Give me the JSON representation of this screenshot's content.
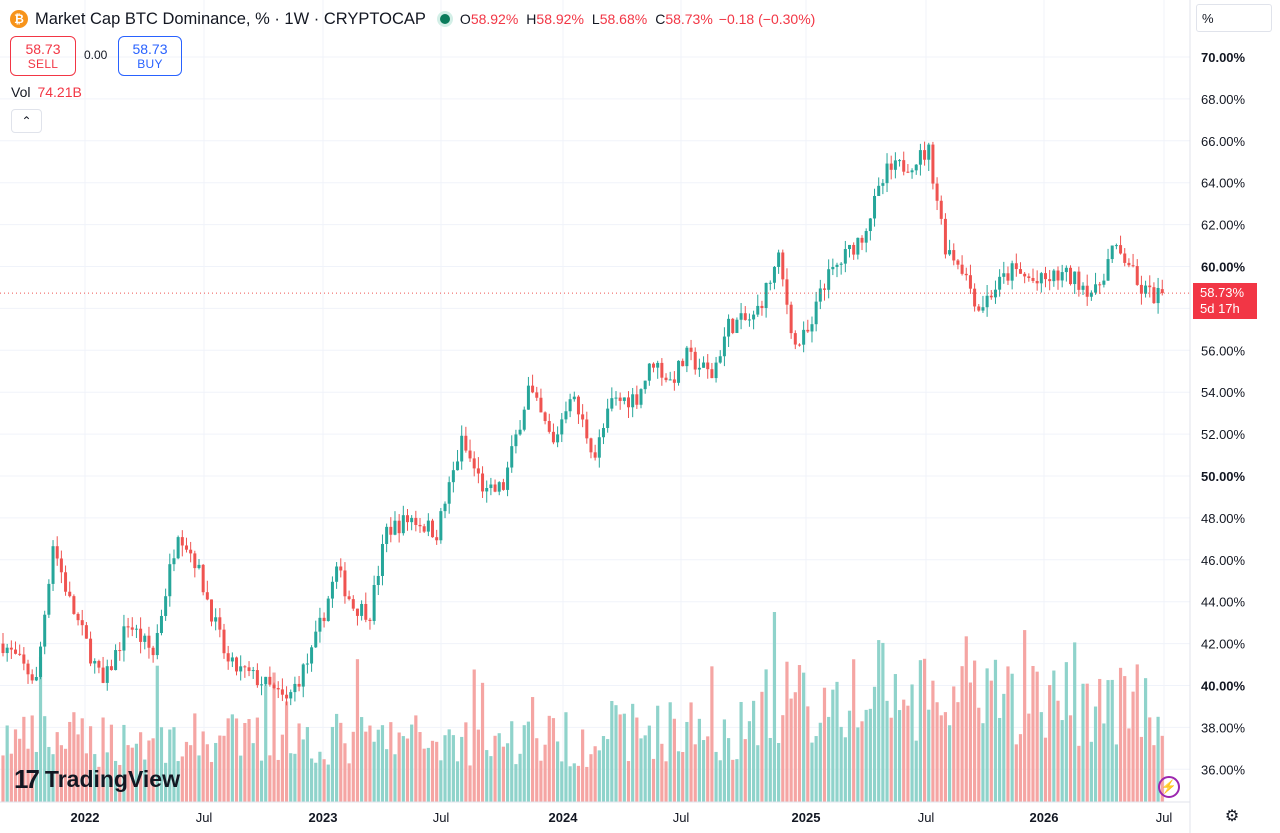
{
  "header": {
    "title": "Market Cap BTC Dominance, % · 1W · CRYPTOCAP",
    "symbol_badge": "₿",
    "ohlc": {
      "o_label": "O",
      "o_value": "58.92%",
      "h_label": "H",
      "h_value": "58.92%",
      "l_label": "L",
      "l_value": "58.68%",
      "c_label": "C",
      "c_value": "58.73%",
      "change": "−0.18 (−0.30%)"
    }
  },
  "trade": {
    "sell_price": "58.73",
    "sell_label": "SELL",
    "spread": "0.00",
    "buy_price": "58.73",
    "buy_label": "BUY"
  },
  "volume": {
    "label": "Vol",
    "value": "74.21B"
  },
  "collapse_glyph": "⌃",
  "axis_unit": "%",
  "last_price": {
    "value": "58.73%",
    "countdown": "5d 17h"
  },
  "brand": {
    "mark": "17",
    "name": "TradingView"
  },
  "colors": {
    "up": "#26a69a",
    "down": "#ef5350",
    "up_vol": "#8fd3cb",
    "down_vol": "#f5a5a3",
    "grid": "#f0f3fa"
  },
  "chart_data": {
    "type": "candlestick",
    "timeframe": "1W",
    "x_ticks": [
      "2022",
      "Jul",
      "2023",
      "Jul",
      "2024",
      "Jul",
      "2025",
      "Jul",
      "2026",
      "Jul"
    ],
    "y_ticks": [
      "70.00%",
      "68.00%",
      "66.00%",
      "64.00%",
      "62.00%",
      "60.00%",
      "58.00%",
      "56.00%",
      "54.00%",
      "52.00%",
      "50.00%",
      "48.00%",
      "46.00%",
      "44.00%",
      "42.00%",
      "40.00%",
      "38.00%",
      "36.00%"
    ],
    "ylim": [
      35.2,
      71.0
    ],
    "keypoints": [
      [
        0,
        42.0
      ],
      [
        8,
        40.2
      ],
      [
        12,
        46.8
      ],
      [
        16,
        44.0
      ],
      [
        24,
        40.0
      ],
      [
        30,
        43.0
      ],
      [
        36,
        41.5
      ],
      [
        42,
        47.5
      ],
      [
        46,
        46.0
      ],
      [
        54,
        41.0
      ],
      [
        62,
        40.2
      ],
      [
        68,
        39.2
      ],
      [
        74,
        41.5
      ],
      [
        80,
        45.5
      ],
      [
        84,
        43.8
      ],
      [
        88,
        43.5
      ],
      [
        92,
        47.4
      ],
      [
        98,
        48.0
      ],
      [
        104,
        47.3
      ],
      [
        110,
        51.6
      ],
      [
        116,
        49.1
      ],
      [
        120,
        49.5
      ],
      [
        126,
        54.2
      ],
      [
        132,
        51.5
      ],
      [
        136,
        54.0
      ],
      [
        142,
        51.0
      ],
      [
        146,
        53.5
      ],
      [
        152,
        53.8
      ],
      [
        156,
        55.5
      ],
      [
        160,
        54.5
      ],
      [
        164,
        55.7
      ],
      [
        170,
        54.8
      ],
      [
        174,
        57.2
      ],
      [
        180,
        57.5
      ],
      [
        186,
        60.3
      ],
      [
        190,
        56.2
      ],
      [
        194,
        57.0
      ],
      [
        196,
        59.0
      ],
      [
        202,
        60.5
      ],
      [
        206,
        61.5
      ],
      [
        212,
        64.5
      ],
      [
        218,
        65.0
      ],
      [
        222,
        65.5
      ],
      [
        226,
        61.0
      ],
      [
        230,
        60.0
      ],
      [
        234,
        58.0
      ],
      [
        238,
        59.0
      ],
      [
        242,
        59.8
      ],
      [
        248,
        59.2
      ],
      [
        254,
        59.6
      ],
      [
        258,
        59.3
      ],
      [
        262,
        58.7
      ],
      [
        266,
        60.8
      ],
      [
        270,
        60.2
      ],
      [
        272,
        59.0
      ],
      [
        276,
        58.6
      ],
      [
        278,
        58.73
      ]
    ]
  }
}
